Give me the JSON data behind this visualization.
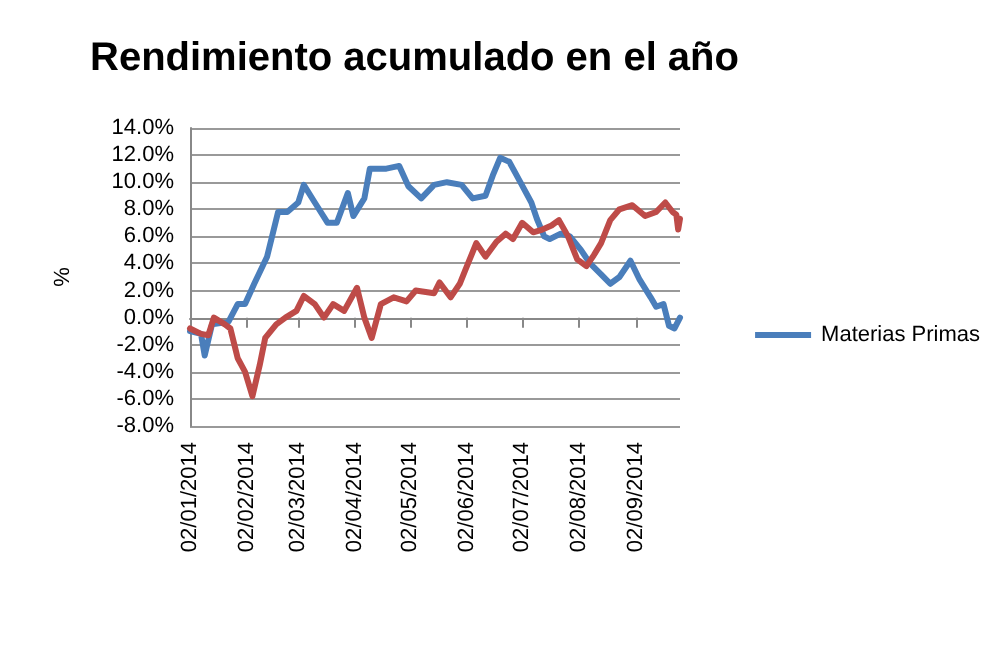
{
  "chart_data": {
    "type": "line",
    "title": "Rendimiento acumulado en el año",
    "ylabel": "%",
    "xlim": [
      "2014-01-02",
      "2014-09-26"
    ],
    "xticks": [
      {
        "value": "2014-01-02",
        "label": "02/01/2014"
      },
      {
        "value": "2014-02-02",
        "label": "02/02/2014"
      },
      {
        "value": "2014-03-02",
        "label": "02/03/2014"
      },
      {
        "value": "2014-04-02",
        "label": "02/04/2014"
      },
      {
        "value": "2014-05-02",
        "label": "02/05/2014"
      },
      {
        "value": "2014-06-02",
        "label": "02/06/2014"
      },
      {
        "value": "2014-07-02",
        "label": "02/07/2014"
      },
      {
        "value": "2014-08-02",
        "label": "02/08/2014"
      },
      {
        "value": "2014-09-02",
        "label": "02/09/2014"
      }
    ],
    "ylim": [
      -8,
      14
    ],
    "yticks": [
      {
        "value": -8,
        "label": "-8.0%"
      },
      {
        "value": -6,
        "label": "-6.0%"
      },
      {
        "value": -4,
        "label": "-4.0%"
      },
      {
        "value": -2,
        "label": "-2.0%"
      },
      {
        "value": 0,
        "label": "0.0%"
      },
      {
        "value": 2,
        "label": "2.0%"
      },
      {
        "value": 4,
        "label": "4.0%"
      },
      {
        "value": 6,
        "label": "6.0%"
      },
      {
        "value": 8,
        "label": "8.0%"
      },
      {
        "value": 10,
        "label": "10.0%"
      },
      {
        "value": 12,
        "label": "12.0%"
      },
      {
        "value": 14,
        "label": "14.0%"
      }
    ],
    "grid": "y",
    "legend": "right",
    "marker": "none",
    "line_style": "solid",
    "series": [
      {
        "name": "Materias Primas",
        "color": "#4a7ebb",
        "x": [
          "2014-01-02",
          "2014-01-08",
          "2014-01-10",
          "2014-01-14",
          "2014-01-23",
          "2014-01-28",
          "2014-02-01",
          "2014-02-06",
          "2014-02-13",
          "2014-02-19",
          "2014-02-24",
          "2014-03-02",
          "2014-03-05",
          "2014-03-11",
          "2014-03-18",
          "2014-03-23",
          "2014-03-29",
          "2014-04-01",
          "2014-04-07",
          "2014-04-10",
          "2014-04-19",
          "2014-04-26",
          "2014-05-01",
          "2014-05-08",
          "2014-05-15",
          "2014-05-22",
          "2014-05-30",
          "2014-06-05",
          "2014-06-12",
          "2014-06-16",
          "2014-06-20",
          "2014-06-25",
          "2014-07-01",
          "2014-07-07",
          "2014-07-10",
          "2014-07-14",
          "2014-07-17",
          "2014-07-23",
          "2014-07-28",
          "2014-08-03",
          "2014-08-08",
          "2014-08-14",
          "2014-08-19",
          "2014-08-24",
          "2014-08-30",
          "2014-09-04",
          "2014-09-10",
          "2014-09-13",
          "2014-09-17",
          "2014-09-20",
          "2014-09-23",
          "2014-09-26"
        ],
        "values": [
          -1.0,
          -1.2,
          -2.8,
          -0.5,
          -0.3,
          1.0,
          1.0,
          2.5,
          4.5,
          7.8,
          7.8,
          8.5,
          9.8,
          8.5,
          7.0,
          7.0,
          9.2,
          7.5,
          8.8,
          11.0,
          11.0,
          11.2,
          9.7,
          8.8,
          9.8,
          10.0,
          9.8,
          8.8,
          9.0,
          10.5,
          11.8,
          11.5,
          10.0,
          8.5,
          7.3,
          6.0,
          5.8,
          6.2,
          6.0,
          5.0,
          4.0,
          3.2,
          2.5,
          3.0,
          4.2,
          2.8,
          1.5,
          0.8,
          1.0,
          -0.6,
          -0.8,
          0.0
        ]
      },
      {
        "color": "#be4b48",
        "x": [
          "2014-01-02",
          "2014-01-08",
          "2014-01-12",
          "2014-01-15",
          "2014-01-21",
          "2014-01-24",
          "2014-01-28",
          "2014-02-01",
          "2014-02-05",
          "2014-02-09",
          "2014-02-12",
          "2014-02-18",
          "2014-02-23",
          "2014-03-01",
          "2014-03-05",
          "2014-03-11",
          "2014-03-16",
          "2014-03-21",
          "2014-03-27",
          "2014-04-03",
          "2014-04-07",
          "2014-04-11",
          "2014-04-16",
          "2014-04-23",
          "2014-04-30",
          "2014-05-05",
          "2014-05-15",
          "2014-05-18",
          "2014-05-24",
          "2014-05-29",
          "2014-06-01",
          "2014-06-07",
          "2014-06-12",
          "2014-06-18",
          "2014-06-23",
          "2014-06-27",
          "2014-07-02",
          "2014-07-08",
          "2014-07-13",
          "2014-07-18",
          "2014-07-22",
          "2014-07-27",
          "2014-08-01",
          "2014-08-06",
          "2014-08-10",
          "2014-08-14",
          "2014-08-19",
          "2014-08-24",
          "2014-08-31",
          "2014-09-07",
          "2014-09-13",
          "2014-09-18",
          "2014-09-22",
          "2014-09-24",
          "2014-09-25",
          "2014-09-26"
        ],
        "values": [
          -0.8,
          -1.2,
          -1.3,
          0.0,
          -0.5,
          -0.8,
          -3.0,
          -4.0,
          -5.8,
          -3.5,
          -1.5,
          -0.5,
          0.0,
          0.5,
          1.6,
          1.0,
          0.0,
          1.0,
          0.5,
          2.2,
          0.0,
          -1.5,
          1.0,
          1.5,
          1.2,
          2.0,
          1.8,
          2.6,
          1.5,
          2.5,
          3.5,
          5.5,
          4.5,
          5.6,
          6.2,
          5.8,
          7.0,
          6.3,
          6.5,
          6.8,
          7.2,
          6.0,
          4.3,
          3.8,
          4.6,
          5.5,
          7.2,
          8.0,
          8.3,
          7.5,
          7.8,
          8.5,
          7.8,
          7.6,
          6.5,
          7.3
        ]
      }
    ]
  }
}
